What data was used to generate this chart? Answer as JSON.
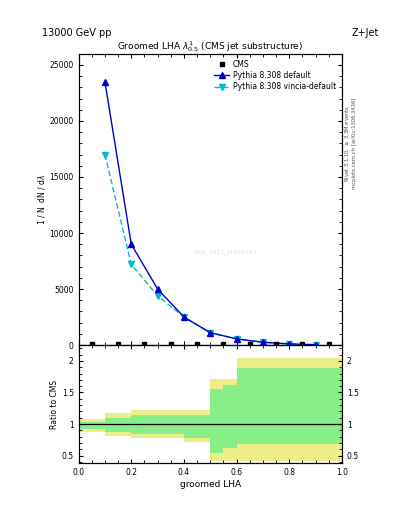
{
  "title_left": "13000 GeV pp",
  "title_right": "Z+Jet",
  "plot_title": "Groomed LHA $\\lambda^{1}_{0.5}$ (CMS jet substructure)",
  "xlabel": "groomed LHA",
  "ylabel": "1 / $\\mathrm{N}$ d$\\mathrm{N}$ / d$\\lambda$",
  "watermark": "CAS_2021_I1920187",
  "right_label1": "Rivet 3.1.10, $\\geq$ 3.3M events",
  "right_label2": "mcplots.cern.ch [arXiv:1306.3436]",
  "cms_x": [
    0.05,
    0.15,
    0.25,
    0.35,
    0.45,
    0.55,
    0.65,
    0.75,
    0.85,
    0.95
  ],
  "cms_y": [
    50,
    50,
    50,
    50,
    50,
    50,
    50,
    50,
    50,
    50
  ],
  "pythia_default_x": [
    0.1,
    0.2,
    0.3,
    0.4,
    0.5,
    0.6,
    0.7,
    0.8,
    0.9
  ],
  "pythia_default_y": [
    23500,
    9000,
    5000,
    2500,
    1100,
    550,
    250,
    100,
    30
  ],
  "pythia_vincia_x": [
    0.1,
    0.2,
    0.3,
    0.4,
    0.5,
    0.6,
    0.7,
    0.8,
    0.9
  ],
  "pythia_vincia_y": [
    17000,
    7200,
    4400,
    2500,
    1100,
    550,
    250,
    100,
    30
  ],
  "ylim_main": [
    0,
    26000
  ],
  "yticks_main": [
    0,
    5000,
    10000,
    15000,
    20000,
    25000
  ],
  "xlim": [
    0,
    1.0
  ],
  "ratio_xlim": [
    0,
    1.0
  ],
  "ratio_ylim": [
    0.38,
    2.25
  ],
  "ratio_yticks": [
    0.5,
    1.0,
    1.5,
    2.0
  ],
  "bin_edges": [
    0.0,
    0.1,
    0.2,
    0.3,
    0.4,
    0.5,
    0.55,
    0.6,
    0.65,
    0.7,
    1.0
  ],
  "ratio_yellow_lo": [
    0.87,
    0.82,
    0.78,
    0.78,
    0.72,
    0.42,
    0.42,
    0.42,
    0.42,
    0.42
  ],
  "ratio_yellow_hi": [
    1.08,
    1.18,
    1.22,
    1.22,
    1.22,
    1.72,
    1.72,
    2.05,
    2.05,
    2.05
  ],
  "ratio_green_lo": [
    0.92,
    0.88,
    0.84,
    0.84,
    0.78,
    0.55,
    0.62,
    0.68,
    0.68,
    0.68
  ],
  "ratio_green_hi": [
    1.04,
    1.1,
    1.14,
    1.14,
    1.14,
    1.55,
    1.62,
    1.88,
    1.88,
    1.88
  ],
  "color_default": "#0000cc",
  "color_vincia": "#00bbcc",
  "color_cms": "#000000",
  "color_green_band": "#88ee88",
  "color_yellow_band": "#eeee88"
}
